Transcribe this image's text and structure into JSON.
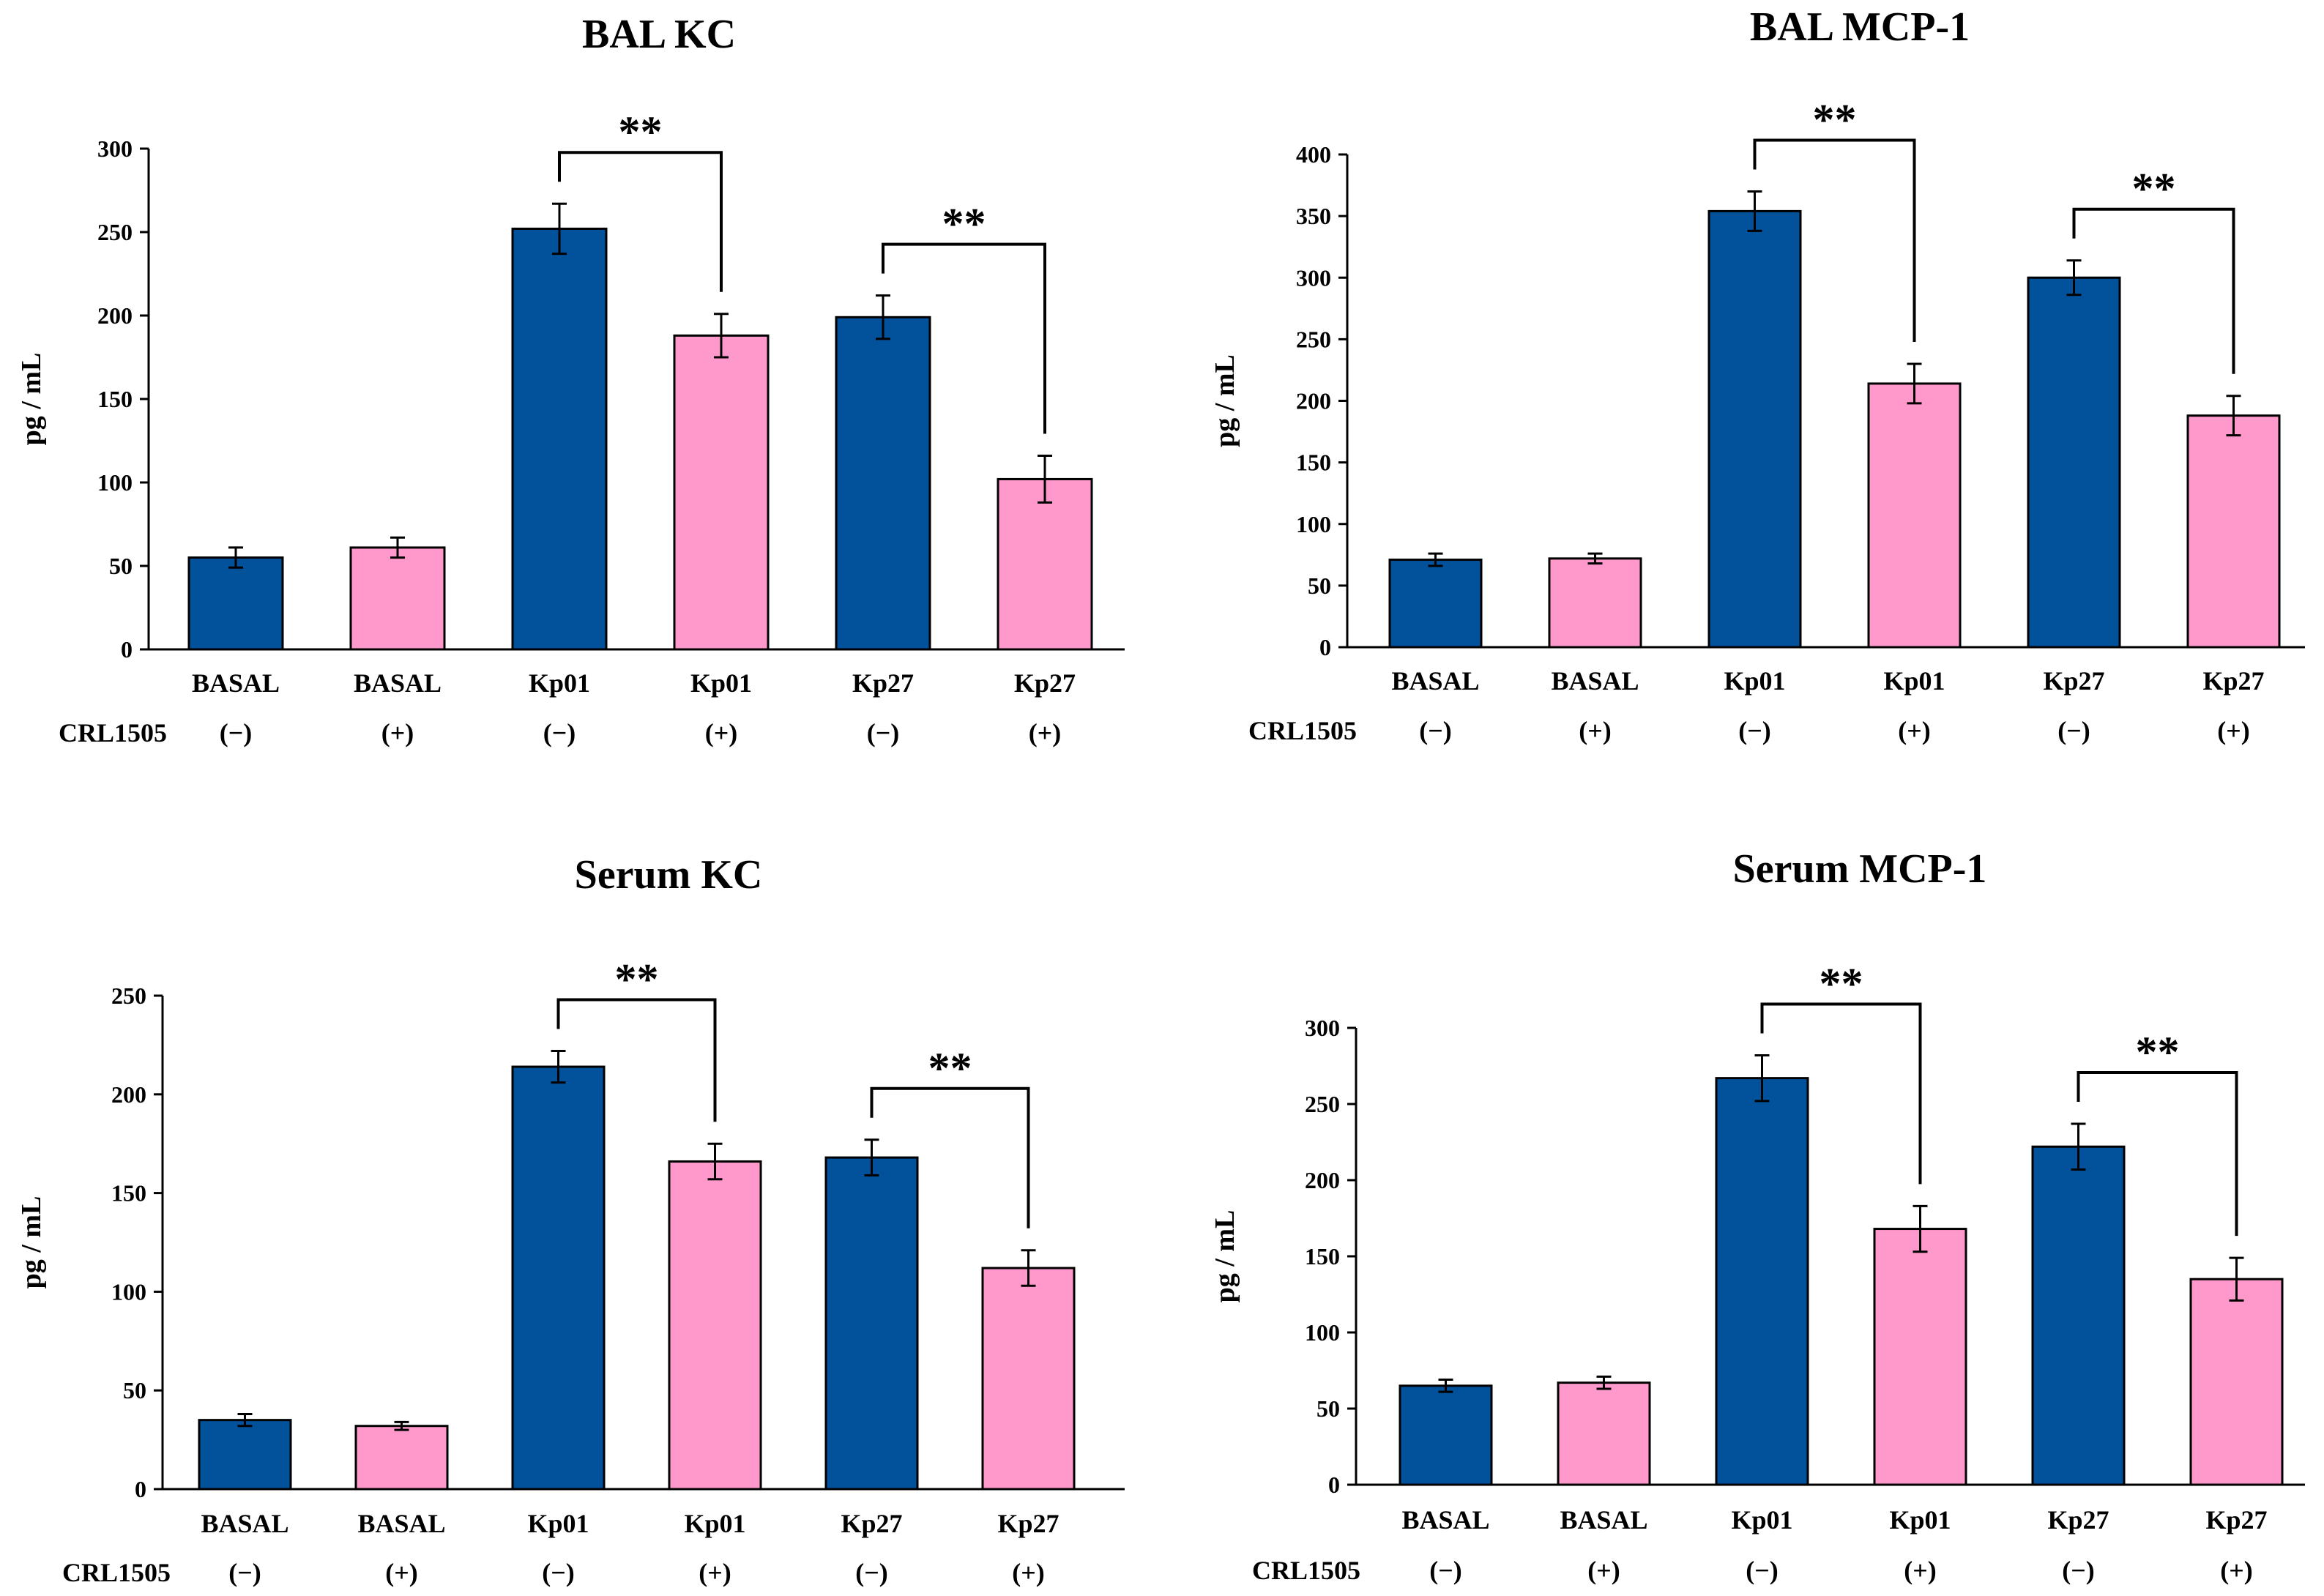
{
  "colors": {
    "untreated": "#02519B",
    "treated": "#FF99CC"
  },
  "chart_data": [
    {
      "type": "bar",
      "title": "BAL KC",
      "ylabel": "pg / mL",
      "ylim": [
        0,
        300
      ],
      "yticks": [
        0,
        50,
        100,
        150,
        200,
        250,
        300
      ],
      "categories": [
        "BASAL",
        "BASAL",
        "Kp01",
        "Kp01",
        "Kp27",
        "Kp27"
      ],
      "treatment_label": "CRL1505",
      "treatment": [
        "(−)",
        "(+)",
        "(−)",
        "(+)",
        "(−)",
        "(+)"
      ],
      "values": [
        55,
        61,
        252,
        188,
        199,
        102
      ],
      "errors": [
        6,
        6,
        15,
        13,
        13,
        14
      ],
      "significance": [
        {
          "from": 2,
          "to": 3,
          "label": "**"
        },
        {
          "from": 4,
          "to": 5,
          "label": "**"
        }
      ]
    },
    {
      "type": "bar",
      "title": "BAL MCP-1",
      "ylabel": "pg / mL",
      "ylim": [
        0,
        400
      ],
      "yticks": [
        0,
        50,
        100,
        150,
        200,
        250,
        300,
        350,
        400
      ],
      "categories": [
        "BASAL",
        "BASAL",
        "Kp01",
        "Kp01",
        "Kp27",
        "Kp27"
      ],
      "treatment_label": "CRL1505",
      "treatment": [
        "(−)",
        "(+)",
        "(−)",
        "(+)",
        "(−)",
        "(+)"
      ],
      "values": [
        71,
        72,
        354,
        214,
        300,
        188
      ],
      "errors": [
        5,
        4,
        16,
        16,
        14,
        16
      ],
      "significance": [
        {
          "from": 2,
          "to": 3,
          "label": "**"
        },
        {
          "from": 4,
          "to": 5,
          "label": "**"
        }
      ]
    },
    {
      "type": "bar",
      "title": "Serum KC",
      "ylabel": "pg / mL",
      "ylim": [
        0,
        250
      ],
      "yticks": [
        0,
        50,
        100,
        150,
        200,
        250
      ],
      "categories": [
        "BASAL",
        "BASAL",
        "Kp01",
        "Kp01",
        "Kp27",
        "Kp27"
      ],
      "treatment_label": "CRL1505",
      "treatment": [
        "(−)",
        "(+)",
        "(−)",
        "(+)",
        "(−)",
        "(+)"
      ],
      "values": [
        35,
        32,
        214,
        166,
        168,
        112
      ],
      "errors": [
        3,
        2,
        8,
        9,
        9,
        9
      ],
      "significance": [
        {
          "from": 2,
          "to": 3,
          "label": "**"
        },
        {
          "from": 4,
          "to": 5,
          "label": "**"
        }
      ]
    },
    {
      "type": "bar",
      "title": "Serum MCP-1",
      "ylabel": "pg / mL",
      "ylim": [
        0,
        300
      ],
      "yticks": [
        0,
        50,
        100,
        150,
        200,
        250,
        300
      ],
      "categories": [
        "BASAL",
        "BASAL",
        "Kp01",
        "Kp01",
        "Kp27",
        "Kp27"
      ],
      "treatment_label": "CRL1505",
      "treatment": [
        "(−)",
        "(+)",
        "(−)",
        "(+)",
        "(−)",
        "(+)"
      ],
      "values": [
        65,
        67,
        267,
        168,
        222,
        135
      ],
      "errors": [
        4,
        4,
        15,
        15,
        15,
        14
      ],
      "significance": [
        {
          "from": 2,
          "to": 3,
          "label": "**"
        },
        {
          "from": 4,
          "to": 5,
          "label": "**"
        }
      ]
    }
  ]
}
